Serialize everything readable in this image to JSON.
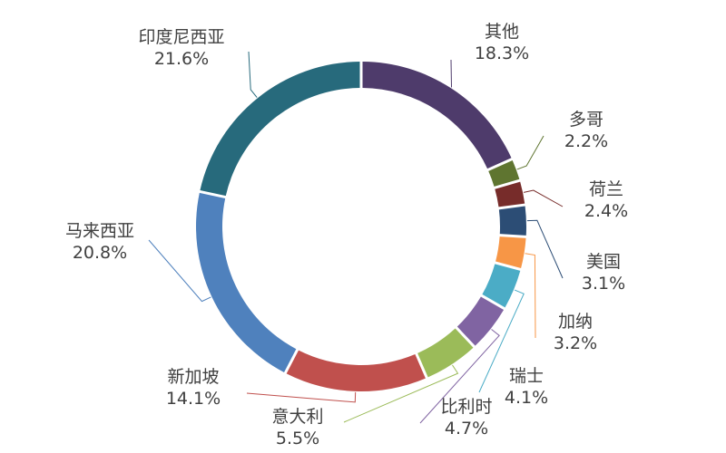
{
  "chart_data": {
    "type": "pie",
    "donut": true,
    "legend": "none",
    "slices": [
      {
        "label": "其他",
        "value": 18.3,
        "value_label": "18.3%",
        "color": "#4e3b6b"
      },
      {
        "label": "多哥",
        "value": 2.2,
        "value_label": "2.2%",
        "color": "#5f7530"
      },
      {
        "label": "荷兰",
        "value": 2.4,
        "value_label": "2.4%",
        "color": "#772c2a"
      },
      {
        "label": "美国",
        "value": 3.1,
        "value_label": "3.1%",
        "color": "#2c4d75"
      },
      {
        "label": "加纳",
        "value": 3.2,
        "value_label": "3.2%",
        "color": "#f79646"
      },
      {
        "label": "瑞士",
        "value": 4.1,
        "value_label": "4.1%",
        "color": "#4bacc6"
      },
      {
        "label": "比利时",
        "value": 4.7,
        "value_label": "4.7%",
        "color": "#8064a2"
      },
      {
        "label": "意大利",
        "value": 5.5,
        "value_label": "5.5%",
        "color": "#9bbb59"
      },
      {
        "label": "新加坡",
        "value": 14.1,
        "value_label": "14.1%",
        "color": "#c0504d"
      },
      {
        "label": "马来西亚",
        "value": 20.8,
        "value_label": "20.8%",
        "color": "#4f81bd"
      },
      {
        "label": "印度尼西亚",
        "value": 21.6,
        "value_label": "21.6%",
        "color": "#276a7c"
      }
    ]
  }
}
